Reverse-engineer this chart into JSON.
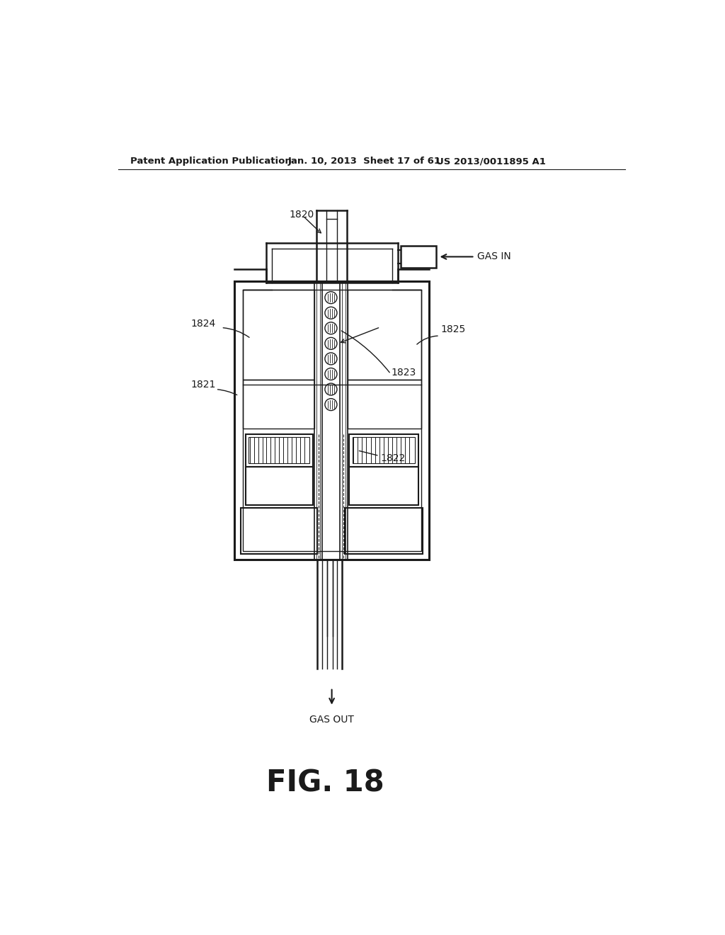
{
  "bg_color": "#ffffff",
  "line_color": "#1a1a1a",
  "header_left": "Patent Application Publication",
  "header_mid": "Jan. 10, 2013  Sheet 17 of 61",
  "header_right": "US 2013/0011895 A1",
  "fig_label": "FIG. 18",
  "label_1820": "1820",
  "label_1821": "1821",
  "label_1822": "1822",
  "label_1823": "1823",
  "label_1824": "1824",
  "label_1825": "1825",
  "gas_in": "GAS IN",
  "gas_out": "GAS OUT",
  "figsize": [
    10.24,
    13.2
  ],
  "dpi": 100
}
